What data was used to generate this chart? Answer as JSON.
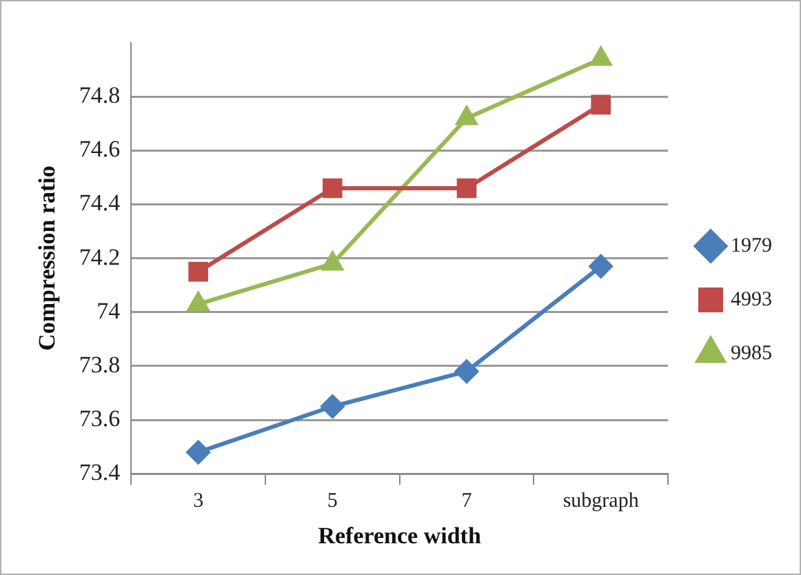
{
  "chart_data": {
    "type": "line",
    "xlabel": "Reference width",
    "ylabel": "Compression ratio",
    "categories": [
      "3",
      "5",
      "7",
      "subgraph"
    ],
    "series": [
      {
        "name": "1979",
        "color": "#4a7ebb",
        "marker": "diamond",
        "values": [
          73.48,
          73.65,
          73.78,
          74.17
        ]
      },
      {
        "name": "4993",
        "color": "#be4b48",
        "marker": "square",
        "values": [
          74.15,
          74.46,
          74.46,
          74.77
        ]
      },
      {
        "name": "9985",
        "color": "#98b954",
        "marker": "triangle",
        "values": [
          74.03,
          74.18,
          74.72,
          74.94
        ]
      }
    ],
    "ylim": [
      73.4,
      75
    ],
    "yticks": [
      73.4,
      73.6,
      73.8,
      74,
      74.2,
      74.4,
      74.6,
      74.8
    ],
    "grid": "y",
    "legend": "right",
    "line_style": "solid"
  }
}
